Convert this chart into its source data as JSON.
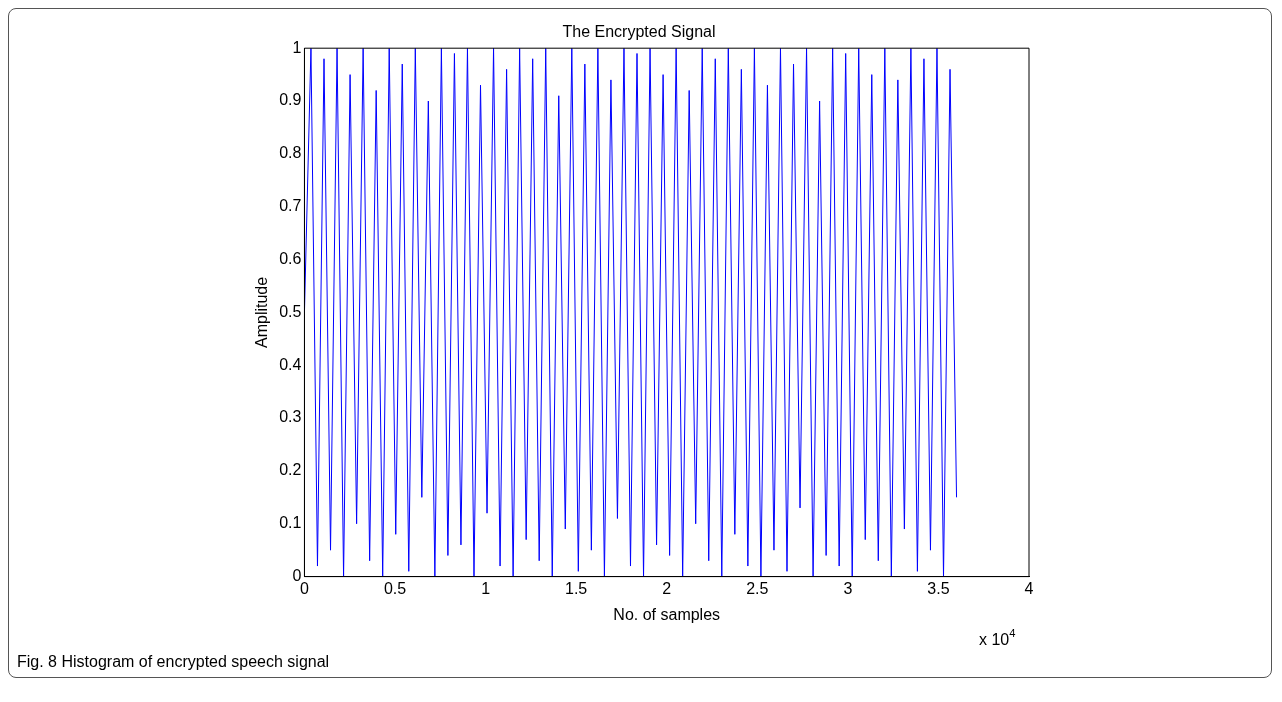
{
  "chart_data": {
    "type": "line",
    "title": "The Encrypted Signal",
    "xlabel": "No. of samples",
    "ylabel": "Amplitude",
    "x": [
      0,
      0.036,
      0.072,
      0.108,
      0.144,
      0.18,
      0.216,
      0.252,
      0.288,
      0.324,
      0.36,
      0.396,
      0.432,
      0.468,
      0.504,
      0.54,
      0.576,
      0.612,
      0.648,
      0.684,
      0.72,
      0.756,
      0.792,
      0.828,
      0.864,
      0.9,
      0.936,
      0.972,
      1.008,
      1.044,
      1.08,
      1.116,
      1.152,
      1.188,
      1.224,
      1.26,
      1.296,
      1.332,
      1.368,
      1.404,
      1.44,
      1.476,
      1.512,
      1.548,
      1.584,
      1.62,
      1.656,
      1.692,
      1.728,
      1.764,
      1.8,
      1.836,
      1.872,
      1.908,
      1.944,
      1.98,
      2.016,
      2.052,
      2.088,
      2.124,
      2.16,
      2.196,
      2.232,
      2.268,
      2.304,
      2.34,
      2.376,
      2.412,
      2.448,
      2.484,
      2.52,
      2.556,
      2.592,
      2.628,
      2.664,
      2.7,
      2.736,
      2.772,
      2.808,
      2.844,
      2.88,
      2.916,
      2.952,
      2.988,
      3.024,
      3.06,
      3.096,
      3.132,
      3.168,
      3.204,
      3.24,
      3.276,
      3.312,
      3.348,
      3.384,
      3.42,
      3.456,
      3.492,
      3.528,
      3.564,
      3.6
    ],
    "series": [
      {
        "color": "#0000ff",
        "values": [
          0.5,
          1,
          0.02,
          0.98,
          0.05,
          1,
          0,
          0.95,
          0.1,
          1,
          0.03,
          0.92,
          0,
          1,
          0.08,
          0.97,
          0.01,
          1,
          0.15,
          0.9,
          0,
          1,
          0.04,
          0.99,
          0.06,
          1,
          0,
          0.93,
          0.12,
          1,
          0.02,
          0.96,
          0,
          1,
          0.07,
          0.98,
          0.03,
          1,
          0,
          0.91,
          0.09,
          1,
          0.01,
          0.97,
          0.05,
          1,
          0,
          0.94,
          0.11,
          1,
          0.02,
          0.99,
          0,
          1,
          0.06,
          0.95,
          0.04,
          1,
          0,
          0.92,
          0.1,
          1,
          0.03,
          0.98,
          0,
          1,
          0.08,
          0.96,
          0.02,
          1,
          0,
          0.93,
          0.05,
          1,
          0.01,
          0.97,
          0.13,
          1,
          0,
          0.9,
          0.04,
          1,
          0.02,
          0.99,
          0,
          1,
          0.07,
          0.95,
          0.03,
          1,
          0,
          0.94,
          0.09,
          1,
          0.01,
          0.98,
          0.05,
          1,
          0,
          0.96,
          0.15
        ]
      }
    ],
    "xlim": [
      0,
      4
    ],
    "xticks": [
      0,
      0.5,
      1,
      1.5,
      2,
      2.5,
      3,
      3.5,
      4
    ],
    "ylim": [
      0,
      1
    ],
    "yticks": [
      0,
      0.1,
      0.2,
      0.3,
      0.4,
      0.5,
      0.6,
      0.7,
      0.8,
      0.9,
      1
    ],
    "grid": false,
    "legend": false,
    "marker": "none",
    "line_style": "solid",
    "annotations": [
      "x 10$^{4}$",
      "Fig. 8 Histogram of encrypted speech signal"
    ]
  }
}
